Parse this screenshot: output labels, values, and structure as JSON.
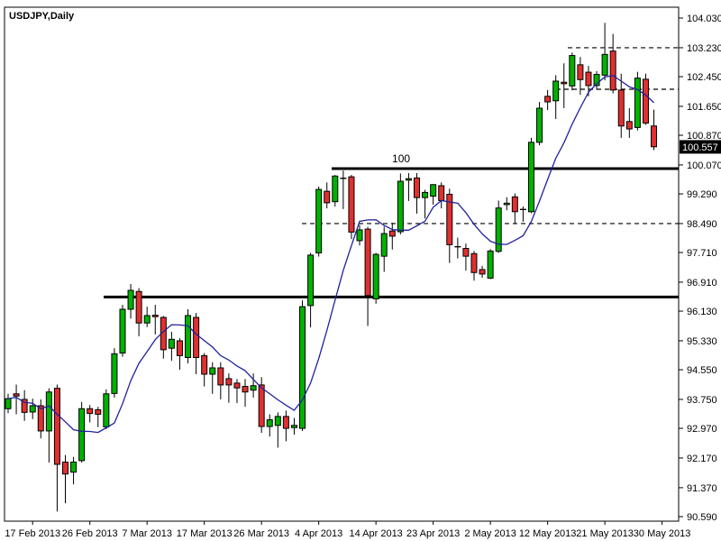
{
  "window": {
    "symbol_label": "USDJPY,Daily"
  },
  "colors": {
    "background": "#ffffff",
    "border": "#000000",
    "bull": "#00b200",
    "bear": "#e03030",
    "outline": "#000000",
    "wick": "#000000",
    "ma_line": "#2020a0",
    "axis_text": "#000000",
    "level_line": "#000000",
    "price_tag_bg": "#000000",
    "price_tag_text": "#ffffff"
  },
  "chart_data": {
    "type": "candlestick",
    "title": "USDJPY,Daily",
    "symbol": "USDJPY",
    "timeframe": "Daily",
    "grid": false,
    "legend_position": "none",
    "price_axis": {
      "side": "right",
      "visible_range": [
        90.468,
        104.322
      ],
      "ticks": [
        104.03,
        103.23,
        102.45,
        101.65,
        100.87,
        100.07,
        99.29,
        98.49,
        97.71,
        96.91,
        96.13,
        95.33,
        94.55,
        93.75,
        92.97,
        92.17,
        91.37,
        90.59
      ],
      "current_price": 100.557,
      "current_price_label": "100.557"
    },
    "x_axis_labels": [
      "17 Feb 2013",
      "26 Feb 2013",
      "7 Mar 2013",
      "17 Mar 2013",
      "26 Mar 2013",
      "4 Apr 2013",
      "14 Apr 2013",
      "23 Apr 2013",
      "2 May 2013",
      "12 May 2013",
      "21 May 2013",
      "30 May 2013"
    ],
    "x_label_start_index": 3,
    "x_label_every": 7,
    "candles_format": [
      "open",
      "high",
      "low",
      "close"
    ],
    "candles": [
      [
        93.5,
        93.9,
        93.38,
        93.77
      ],
      [
        93.9,
        94.15,
        93.35,
        93.84
      ],
      [
        93.75,
        94.0,
        93.17,
        93.4
      ],
      [
        93.41,
        93.77,
        93.22,
        93.58
      ],
      [
        93.58,
        93.75,
        92.7,
        92.9
      ],
      [
        92.9,
        94.05,
        92.05,
        93.95
      ],
      [
        94.05,
        94.15,
        90.73,
        92.0
      ],
      [
        92.06,
        92.25,
        90.95,
        91.74
      ],
      [
        91.79,
        92.2,
        91.46,
        92.06
      ],
      [
        92.1,
        93.68,
        92.05,
        93.5
      ],
      [
        93.5,
        93.6,
        93.13,
        93.37
      ],
      [
        93.47,
        93.55,
        93.0,
        93.35
      ],
      [
        93.01,
        94.02,
        92.95,
        93.9
      ],
      [
        93.91,
        95.13,
        93.8,
        94.98
      ],
      [
        95.0,
        96.3,
        94.9,
        96.18
      ],
      [
        96.18,
        96.86,
        95.93,
        96.69
      ],
      [
        96.66,
        96.75,
        95.45,
        95.81
      ],
      [
        95.81,
        96.25,
        95.7,
        96.01
      ],
      [
        96.02,
        96.3,
        95.5,
        95.98
      ],
      [
        95.96,
        96.0,
        94.85,
        95.09
      ],
      [
        95.13,
        95.57,
        94.79,
        95.37
      ],
      [
        95.33,
        95.4,
        94.55,
        94.93
      ],
      [
        94.88,
        96.18,
        94.72,
        96.01
      ],
      [
        95.96,
        96.08,
        94.43,
        94.88
      ],
      [
        94.93,
        95.0,
        94.1,
        94.43
      ],
      [
        94.43,
        94.75,
        93.9,
        94.6
      ],
      [
        94.6,
        94.75,
        93.75,
        94.14
      ],
      [
        94.31,
        94.45,
        93.66,
        94.14
      ],
      [
        94.19,
        94.3,
        93.65,
        94.06
      ],
      [
        94.1,
        94.3,
        93.55,
        93.95
      ],
      [
        94.0,
        94.45,
        93.8,
        94.12
      ],
      [
        94.14,
        94.35,
        92.85,
        93.02
      ],
      [
        93.02,
        93.35,
        92.75,
        93.2
      ],
      [
        93.05,
        93.4,
        92.45,
        93.29
      ],
      [
        93.29,
        93.45,
        92.62,
        92.97
      ],
      [
        92.99,
        93.25,
        92.8,
        93.05
      ],
      [
        92.97,
        96.42,
        92.9,
        96.25
      ],
      [
        96.28,
        97.7,
        95.69,
        97.64
      ],
      [
        97.7,
        99.49,
        97.6,
        99.41
      ],
      [
        99.36,
        99.6,
        98.9,
        99.05
      ],
      [
        99.08,
        99.8,
        98.95,
        99.77
      ],
      [
        99.72,
        99.92,
        98.88,
        99.7
      ],
      [
        99.75,
        99.8,
        98.07,
        98.26
      ],
      [
        98.03,
        98.45,
        97.9,
        98.32
      ],
      [
        98.34,
        98.4,
        95.73,
        96.55
      ],
      [
        96.46,
        97.7,
        96.33,
        97.66
      ],
      [
        97.61,
        98.41,
        97.19,
        98.22
      ],
      [
        98.29,
        98.51,
        97.79,
        98.15
      ],
      [
        98.27,
        99.84,
        98.2,
        99.63
      ],
      [
        99.66,
        99.85,
        99.1,
        99.7
      ],
      [
        99.72,
        99.85,
        98.76,
        99.19
      ],
      [
        99.19,
        99.4,
        98.63,
        99.33
      ],
      [
        99.23,
        99.55,
        99.0,
        99.54
      ],
      [
        99.51,
        99.6,
        98.9,
        99.11
      ],
      [
        99.28,
        99.43,
        97.43,
        97.92
      ],
      [
        97.85,
        98.11,
        97.55,
        97.88
      ],
      [
        97.82,
        97.95,
        97.22,
        97.61
      ],
      [
        97.68,
        97.75,
        96.95,
        97.17
      ],
      [
        97.25,
        97.35,
        97.03,
        97.13
      ],
      [
        97.02,
        97.8,
        96.99,
        97.75
      ],
      [
        97.74,
        99.11,
        97.7,
        98.91
      ],
      [
        99.0,
        99.2,
        98.85,
        99.04
      ],
      [
        99.21,
        99.3,
        98.49,
        98.81
      ],
      [
        98.88,
        98.95,
        98.54,
        98.86
      ],
      [
        98.81,
        100.8,
        98.77,
        100.68
      ],
      [
        100.68,
        101.77,
        100.6,
        101.6
      ],
      [
        101.92,
        102.09,
        101.55,
        101.77
      ],
      [
        101.8,
        102.49,
        101.31,
        102.33
      ],
      [
        102.3,
        102.81,
        101.6,
        102.26
      ],
      [
        102.2,
        103.1,
        102.08,
        103.02
      ],
      [
        102.77,
        102.98,
        101.96,
        102.37
      ],
      [
        102.57,
        102.74,
        101.92,
        102.21
      ],
      [
        102.21,
        102.6,
        102.1,
        102.51
      ],
      [
        102.49,
        103.9,
        102.35,
        103.05
      ],
      [
        103.14,
        103.6,
        102.0,
        102.09
      ],
      [
        102.09,
        102.53,
        100.8,
        101.12
      ],
      [
        101.24,
        101.6,
        100.8,
        101.04
      ],
      [
        101.08,
        102.58,
        101.0,
        102.41
      ],
      [
        102.38,
        102.53,
        101.15,
        101.2
      ],
      [
        101.12,
        101.56,
        100.47,
        100.56
      ]
    ],
    "moving_average": {
      "period": 8,
      "method": "simple",
      "applied_to": "close"
    },
    "overlays": {
      "solid_levels": [
        {
          "price": 99.97,
          "start_ratio": 0.4853,
          "label": "100",
          "label_ratio": 0.5749,
          "weight": 3
        },
        {
          "price": 96.51,
          "start_ratio": 0.1471,
          "label": "",
          "label_ratio": 0,
          "weight": 3
        }
      ],
      "dashed_levels": [
        {
          "price": 103.23,
          "start_ratio": 0.8356
        },
        {
          "price": 102.11,
          "start_ratio": 0.8182
        },
        {
          "price": 98.49,
          "start_ratio": 0.4412
        }
      ]
    }
  }
}
